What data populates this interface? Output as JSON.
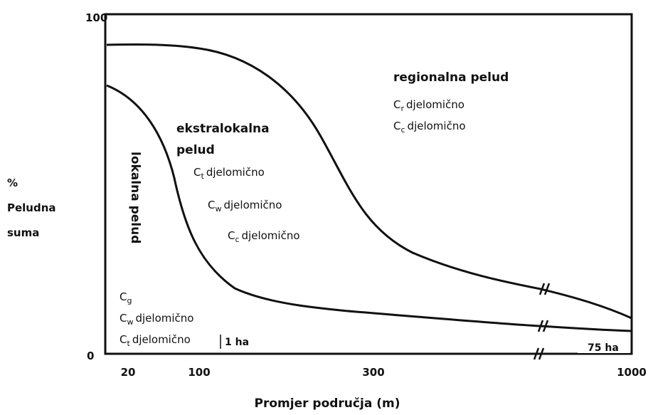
{
  "axes": {
    "y_max": "100",
    "y_min": "0",
    "x_ticks": [
      "20",
      "100",
      "300",
      "1000"
    ],
    "x_label": "Promjer područja (m)",
    "y_label": [
      "%",
      "Peludna",
      "suma"
    ]
  },
  "regions": {
    "regional": {
      "title": "regionalna pelud",
      "items": [
        {
          "base": "C",
          "sub": "r",
          "text": "djelomično"
        },
        {
          "base": "C",
          "sub": "c",
          "text": "djelomično"
        }
      ]
    },
    "extralocal": {
      "title": [
        "ekstralokalna",
        "pelud"
      ],
      "items": [
        {
          "base": "C",
          "sub": "t",
          "text": "djelomično"
        },
        {
          "base": "C",
          "sub": "w",
          "text": "djelomično"
        },
        {
          "base": "C",
          "sub": "c",
          "text": "djelomično"
        }
      ]
    },
    "local": {
      "title": "lokalna pelud",
      "items": [
        {
          "base": "C",
          "sub": "g",
          "text": ""
        },
        {
          "base": "C",
          "sub": "w",
          "text": "djelomično"
        },
        {
          "base": "C",
          "sub": "t",
          "text": "djelomično"
        }
      ]
    }
  },
  "markers": {
    "small": "1 ha",
    "large": "75 ha"
  }
}
